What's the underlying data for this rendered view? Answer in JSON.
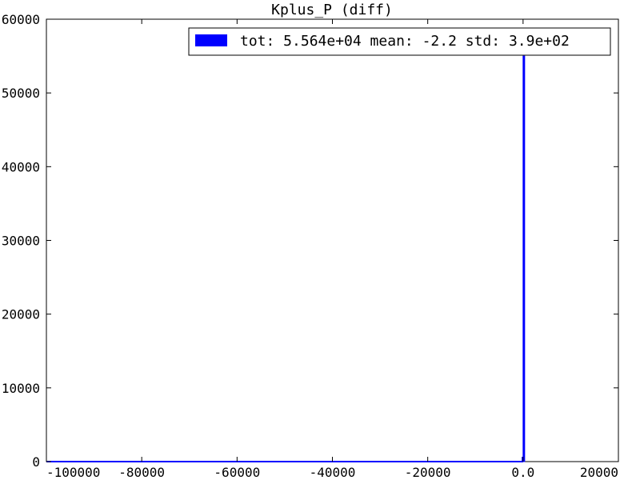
{
  "chart_data": {
    "type": "bar",
    "title": "Kplus_P (diff)",
    "xlabel": "",
    "ylabel": "",
    "xlim": [
      -100000,
      20000
    ],
    "ylim": [
      0,
      60000
    ],
    "x_ticks": [
      -100000,
      -80000,
      -60000,
      -40000,
      -20000,
      0,
      20000
    ],
    "x_tick_labels": [
      "-100000",
      "-80000",
      "-60000",
      "-40000",
      "-20000",
      "0.0",
      "20000"
    ],
    "y_ticks": [
      0,
      10000,
      20000,
      30000,
      40000,
      50000,
      60000
    ],
    "y_tick_labels": [
      "0",
      "10000",
      "20000",
      "30000",
      "40000",
      "50000",
      "60000"
    ],
    "grid": false,
    "legend_position": "top-right",
    "series": [
      {
        "name": "tot: 5.564e+04 mean: -2.2 std: 3.9e+02",
        "color": "#0000ff",
        "bins": [
          {
            "x0": -200,
            "x1": 0,
            "value": 600
          },
          {
            "x0": 0,
            "x1": 200,
            "value": 55000
          }
        ]
      }
    ],
    "baseline_range": [
      -100000,
      0
    ]
  }
}
